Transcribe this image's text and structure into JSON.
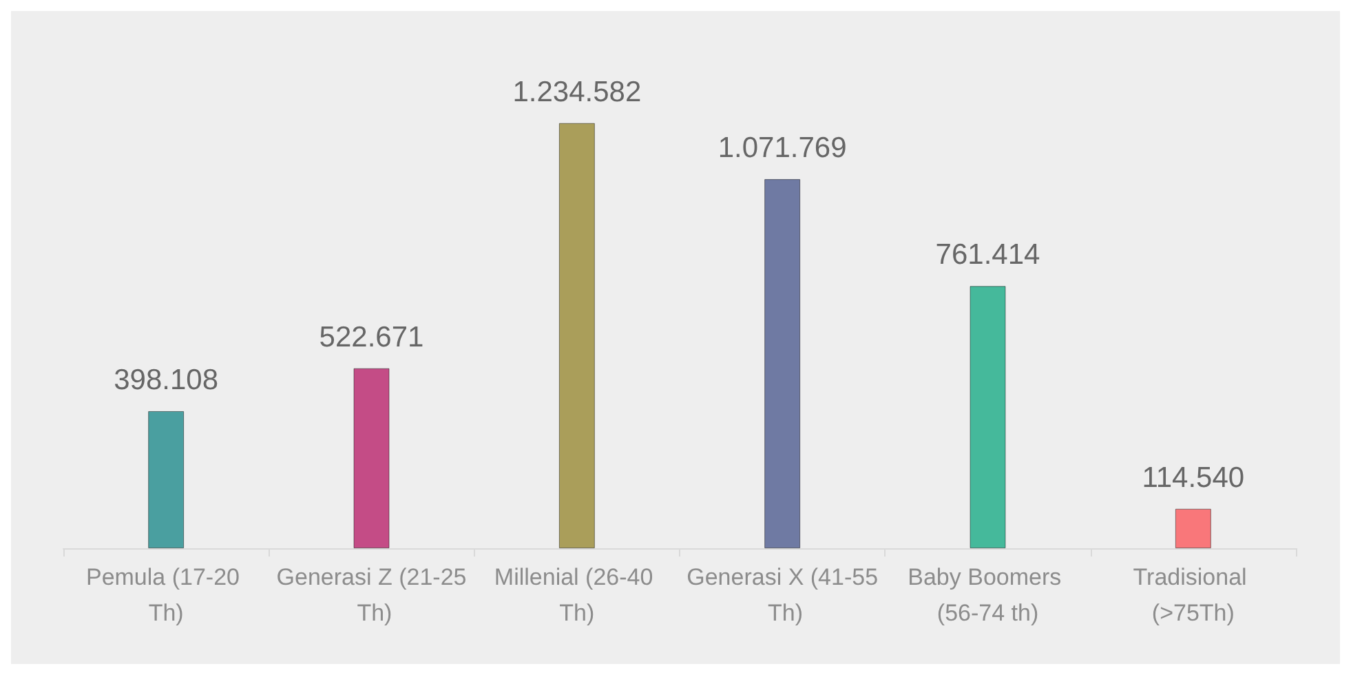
{
  "chart_data": {
    "type": "bar",
    "categories": [
      "Pemula (17-20 Th)",
      "Generasi Z (21-25 Th)",
      "Millenial (26-40 Th)",
      "Generasi X (41-55 Th)",
      "Baby Boomers (56-74 th)",
      "Tradisional (>75Th)"
    ],
    "values": [
      398108,
      522671,
      1234582,
      1071769,
      761414,
      114540
    ],
    "value_labels": [
      "398.108",
      "522.671",
      "1.234.582",
      "1.071.769",
      "761.414",
      "114.540"
    ],
    "colors": [
      "#4a9fa0",
      "#c44c86",
      "#aa9e5a",
      "#6f7aa3",
      "#45b99b",
      "#f9777a"
    ]
  }
}
